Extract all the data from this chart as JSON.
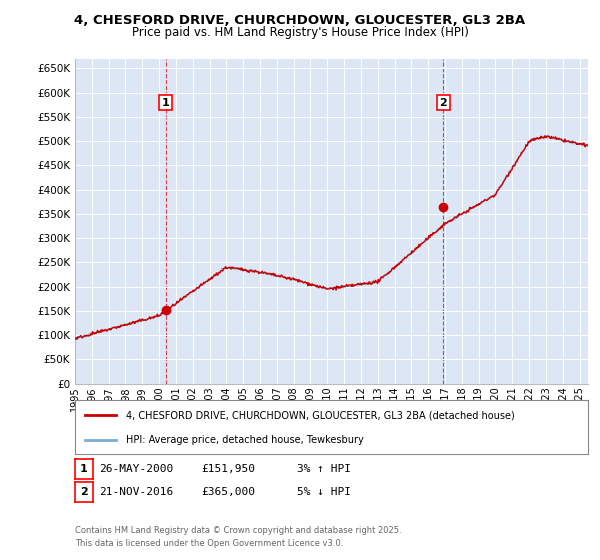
{
  "title_line1": "4, CHESFORD DRIVE, CHURCHDOWN, GLOUCESTER, GL3 2BA",
  "title_line2": "Price paid vs. HM Land Registry's House Price Index (HPI)",
  "background_color": "#dce6f5",
  "plot_bg_color": "#dce6f5",
  "ylabel_ticks": [
    "£0",
    "£50K",
    "£100K",
    "£150K",
    "£200K",
    "£250K",
    "£300K",
    "£350K",
    "£400K",
    "£450K",
    "£500K",
    "£550K",
    "£600K",
    "£650K"
  ],
  "ytick_values": [
    0,
    50000,
    100000,
    150000,
    200000,
    250000,
    300000,
    350000,
    400000,
    450000,
    500000,
    550000,
    600000,
    650000
  ],
  "ylim": [
    0,
    670000
  ],
  "xlim_start": 1995.0,
  "xlim_end": 2025.5,
  "sale1_year": 2000.4,
  "sale1_price": 151950,
  "sale2_year": 2016.9,
  "sale2_price": 365000,
  "red_line_color": "#cc0000",
  "blue_line_color": "#7aadcf",
  "marker_color": "#cc0000",
  "legend_line1": "4, CHESFORD DRIVE, CHURCHDOWN, GLOUCESTER, GL3 2BA (detached house)",
  "legend_line2": "HPI: Average price, detached house, Tewkesbury",
  "footnote": "Contains HM Land Registry data © Crown copyright and database right 2025.\nThis data is licensed under the Open Government Licence v3.0.",
  "grid_color": "#ffffff",
  "vline_color": "#cc0000",
  "annot1_date": "26-MAY-2000",
  "annot1_price": "£151,950",
  "annot1_hpi": "3% ↑ HPI",
  "annot2_date": "21-NOV-2016",
  "annot2_price": "£365,000",
  "annot2_hpi": "5% ↓ HPI"
}
